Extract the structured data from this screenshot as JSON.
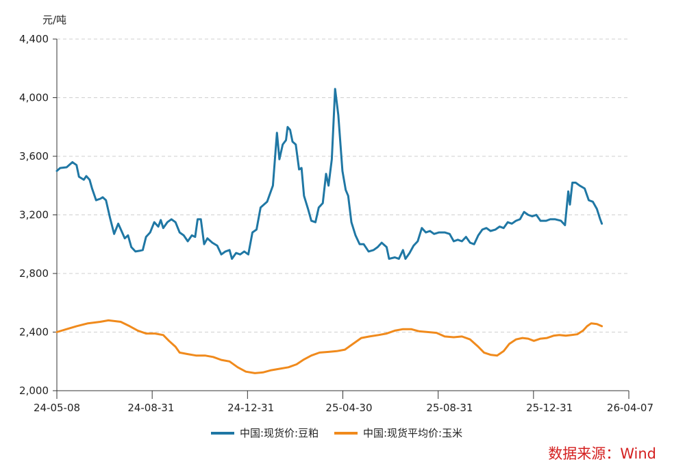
{
  "source_note": "数据来源：Wind",
  "chart_data": {
    "type": "line",
    "title": "",
    "ylabel": "元/吨",
    "xlabel": "",
    "ylim": [
      2000,
      4400
    ],
    "yticks": [
      2000,
      2400,
      2800,
      3200,
      3600,
      4000,
      4400
    ],
    "ytick_labels": [
      "2,000",
      "2,400",
      "2,800",
      "3,200",
      "3,600",
      "4,000",
      "4,400"
    ],
    "xlim": [
      "2024-05-08",
      "2026-04-07"
    ],
    "xtick_labels": [
      "24-05-08",
      "24-08-31",
      "24-12-31",
      "25-04-30",
      "25-08-31",
      "25-12-31",
      "26-04-07"
    ],
    "xtick_dates": [
      "2024-05-08",
      "2024-08-31",
      "2024-12-31",
      "2025-04-30",
      "2025-08-31",
      "2025-12-31",
      "2026-04-07"
    ],
    "grid": "horizontal dashed",
    "legend_position": "bottom-center",
    "series": [
      {
        "name": "中国:现货价:豆粕",
        "color": "#1f77a4",
        "points": [
          [
            "2024-05-08",
            3500
          ],
          [
            "2024-05-12",
            3520
          ],
          [
            "2024-05-20",
            3525
          ],
          [
            "2024-05-27",
            3560
          ],
          [
            "2024-06-01",
            3540
          ],
          [
            "2024-06-04",
            3460
          ],
          [
            "2024-06-10",
            3440
          ],
          [
            "2024-06-13",
            3465
          ],
          [
            "2024-06-17",
            3440
          ],
          [
            "2024-06-20",
            3380
          ],
          [
            "2024-06-25",
            3300
          ],
          [
            "2024-06-30",
            3310
          ],
          [
            "2024-07-03",
            3320
          ],
          [
            "2024-07-07",
            3300
          ],
          [
            "2024-07-12",
            3180
          ],
          [
            "2024-07-17",
            3070
          ],
          [
            "2024-07-22",
            3140
          ],
          [
            "2024-07-26",
            3090
          ],
          [
            "2024-07-30",
            3040
          ],
          [
            "2024-08-03",
            3060
          ],
          [
            "2024-08-07",
            2980
          ],
          [
            "2024-08-12",
            2950
          ],
          [
            "2024-08-17",
            2955
          ],
          [
            "2024-08-21",
            2960
          ],
          [
            "2024-08-25",
            3050
          ],
          [
            "2024-08-30",
            3080
          ],
          [
            "2024-09-04",
            3150
          ],
          [
            "2024-09-09",
            3120
          ],
          [
            "2024-09-12",
            3165
          ],
          [
            "2024-09-15",
            3110
          ],
          [
            "2024-09-20",
            3150
          ],
          [
            "2024-09-25",
            3170
          ],
          [
            "2024-09-30",
            3150
          ],
          [
            "2024-10-05",
            3080
          ],
          [
            "2024-10-10",
            3060
          ],
          [
            "2024-10-15",
            3020
          ],
          [
            "2024-10-20",
            3060
          ],
          [
            "2024-10-24",
            3050
          ],
          [
            "2024-10-27",
            3170
          ],
          [
            "2024-10-31",
            3170
          ],
          [
            "2024-11-04",
            3000
          ],
          [
            "2024-11-08",
            3040
          ],
          [
            "2024-11-14",
            3010
          ],
          [
            "2024-11-20",
            2990
          ],
          [
            "2024-11-25",
            2930
          ],
          [
            "2024-11-30",
            2950
          ],
          [
            "2024-12-05",
            2960
          ],
          [
            "2024-12-08",
            2900
          ],
          [
            "2024-12-13",
            2940
          ],
          [
            "2024-12-18",
            2930
          ],
          [
            "2024-12-23",
            2950
          ],
          [
            "2024-12-28",
            2930
          ],
          [
            "2025-01-02",
            3080
          ],
          [
            "2025-01-07",
            3100
          ],
          [
            "2025-01-12",
            3250
          ],
          [
            "2025-01-20",
            3290
          ],
          [
            "2025-01-27",
            3400
          ],
          [
            "2025-02-01",
            3760
          ],
          [
            "2025-02-04",
            3580
          ],
          [
            "2025-02-08",
            3680
          ],
          [
            "2025-02-12",
            3710
          ],
          [
            "2025-02-14",
            3800
          ],
          [
            "2025-02-17",
            3780
          ],
          [
            "2025-02-20",
            3700
          ],
          [
            "2025-02-24",
            3680
          ],
          [
            "2025-02-28",
            3510
          ],
          [
            "2025-03-03",
            3520
          ],
          [
            "2025-03-06",
            3330
          ],
          [
            "2025-03-11",
            3240
          ],
          [
            "2025-03-15",
            3160
          ],
          [
            "2025-03-20",
            3150
          ],
          [
            "2025-03-24",
            3250
          ],
          [
            "2025-03-29",
            3280
          ],
          [
            "2025-04-02",
            3480
          ],
          [
            "2025-04-05",
            3400
          ],
          [
            "2025-04-09",
            3580
          ],
          [
            "2025-04-13",
            4060
          ],
          [
            "2025-04-17",
            3880
          ],
          [
            "2025-04-22",
            3500
          ],
          [
            "2025-04-26",
            3370
          ],
          [
            "2025-04-29",
            3330
          ],
          [
            "2025-05-03",
            3150
          ],
          [
            "2025-05-08",
            3060
          ],
          [
            "2025-05-13",
            3000
          ],
          [
            "2025-05-18",
            3000
          ],
          [
            "2025-05-24",
            2950
          ],
          [
            "2025-05-30",
            2960
          ],
          [
            "2025-06-04",
            2980
          ],
          [
            "2025-06-09",
            3010
          ],
          [
            "2025-06-15",
            2980
          ],
          [
            "2025-06-18",
            2900
          ],
          [
            "2025-06-25",
            2910
          ],
          [
            "2025-06-30",
            2900
          ],
          [
            "2025-07-05",
            2960
          ],
          [
            "2025-07-08",
            2900
          ],
          [
            "2025-07-13",
            2940
          ],
          [
            "2025-07-18",
            2990
          ],
          [
            "2025-07-23",
            3020
          ],
          [
            "2025-07-28",
            3110
          ],
          [
            "2025-08-02",
            3080
          ],
          [
            "2025-08-07",
            3090
          ],
          [
            "2025-08-12",
            3070
          ],
          [
            "2025-08-18",
            3080
          ],
          [
            "2025-08-25",
            3080
          ],
          [
            "2025-08-31",
            3070
          ],
          [
            "2025-09-05",
            3020
          ],
          [
            "2025-09-10",
            3030
          ],
          [
            "2025-09-15",
            3020
          ],
          [
            "2025-09-20",
            3050
          ],
          [
            "2025-09-25",
            3010
          ],
          [
            "2025-09-30",
            3000
          ],
          [
            "2025-10-05",
            3060
          ],
          [
            "2025-10-10",
            3100
          ],
          [
            "2025-10-15",
            3110
          ],
          [
            "2025-10-20",
            3090
          ],
          [
            "2025-10-26",
            3100
          ],
          [
            "2025-10-31",
            3120
          ],
          [
            "2025-11-05",
            3110
          ],
          [
            "2025-11-10",
            3150
          ],
          [
            "2025-11-15",
            3140
          ],
          [
            "2025-11-20",
            3160
          ],
          [
            "2025-11-25",
            3170
          ],
          [
            "2025-11-30",
            3220
          ],
          [
            "2025-12-05",
            3200
          ],
          [
            "2025-12-10",
            3190
          ],
          [
            "2025-12-15",
            3200
          ],
          [
            "2025-12-20",
            3160
          ],
          [
            "2025-12-27",
            3160
          ],
          [
            "2026-01-01",
            3170
          ],
          [
            "2026-01-07",
            3170
          ],
          [
            "2026-01-14",
            3160
          ],
          [
            "2026-01-19",
            3130
          ],
          [
            "2026-01-23",
            3360
          ],
          [
            "2026-01-25",
            3270
          ],
          [
            "2026-01-28",
            3420
          ],
          [
            "2026-02-01",
            3420
          ],
          [
            "2026-02-06",
            3400
          ],
          [
            "2026-02-12",
            3380
          ],
          [
            "2026-02-17",
            3300
          ],
          [
            "2026-02-22",
            3290
          ],
          [
            "2026-02-27",
            3240
          ],
          [
            "2026-03-03",
            3170
          ],
          [
            "2026-03-05",
            3140
          ]
        ]
      },
      {
        "name": "中国:现货平均价:玉米",
        "color": "#f08a1c",
        "points": [
          [
            "2024-05-08",
            2400
          ],
          [
            "2024-05-20",
            2420
          ],
          [
            "2024-06-01",
            2440
          ],
          [
            "2024-06-15",
            2460
          ],
          [
            "2024-06-30",
            2470
          ],
          [
            "2024-07-10",
            2480
          ],
          [
            "2024-07-25",
            2470
          ],
          [
            "2024-08-05",
            2440
          ],
          [
            "2024-08-15",
            2410
          ],
          [
            "2024-08-25",
            2390
          ],
          [
            "2024-09-05",
            2390
          ],
          [
            "2024-09-15",
            2380
          ],
          [
            "2024-09-22",
            2340
          ],
          [
            "2024-09-30",
            2300
          ],
          [
            "2024-10-05",
            2260
          ],
          [
            "2024-10-15",
            2250
          ],
          [
            "2024-10-25",
            2240
          ],
          [
            "2024-11-05",
            2240
          ],
          [
            "2024-11-15",
            2230
          ],
          [
            "2024-11-25",
            2210
          ],
          [
            "2024-12-05",
            2200
          ],
          [
            "2024-12-15",
            2160
          ],
          [
            "2024-12-25",
            2130
          ],
          [
            "2025-01-05",
            2120
          ],
          [
            "2025-01-15",
            2125
          ],
          [
            "2025-01-25",
            2140
          ],
          [
            "2025-02-05",
            2150
          ],
          [
            "2025-02-15",
            2160
          ],
          [
            "2025-02-25",
            2180
          ],
          [
            "2025-03-05",
            2210
          ],
          [
            "2025-03-15",
            2240
          ],
          [
            "2025-03-25",
            2260
          ],
          [
            "2025-04-05",
            2265
          ],
          [
            "2025-04-15",
            2270
          ],
          [
            "2025-04-25",
            2280
          ],
          [
            "2025-05-05",
            2320
          ],
          [
            "2025-05-15",
            2360
          ],
          [
            "2025-05-25",
            2370
          ],
          [
            "2025-06-05",
            2380
          ],
          [
            "2025-06-15",
            2390
          ],
          [
            "2025-06-25",
            2410
          ],
          [
            "2025-07-05",
            2420
          ],
          [
            "2025-07-15",
            2420
          ],
          [
            "2025-07-25",
            2405
          ],
          [
            "2025-08-05",
            2400
          ],
          [
            "2025-08-15",
            2395
          ],
          [
            "2025-08-25",
            2370
          ],
          [
            "2025-09-05",
            2365
          ],
          [
            "2025-09-15",
            2370
          ],
          [
            "2025-09-25",
            2350
          ],
          [
            "2025-10-05",
            2300
          ],
          [
            "2025-10-12",
            2260
          ],
          [
            "2025-10-20",
            2245
          ],
          [
            "2025-10-28",
            2240
          ],
          [
            "2025-11-05",
            2270
          ],
          [
            "2025-11-12",
            2320
          ],
          [
            "2025-11-20",
            2350
          ],
          [
            "2025-11-28",
            2360
          ],
          [
            "2025-12-05",
            2355
          ],
          [
            "2025-12-12",
            2340
          ],
          [
            "2025-12-20",
            2355
          ],
          [
            "2025-12-28",
            2360
          ],
          [
            "2026-01-05",
            2375
          ],
          [
            "2026-01-12",
            2380
          ],
          [
            "2026-01-20",
            2375
          ],
          [
            "2026-01-27",
            2380
          ],
          [
            "2026-02-03",
            2385
          ],
          [
            "2026-02-10",
            2410
          ],
          [
            "2026-02-15",
            2440
          ],
          [
            "2026-02-20",
            2460
          ],
          [
            "2026-02-27",
            2455
          ],
          [
            "2026-03-05",
            2440
          ]
        ]
      }
    ]
  }
}
